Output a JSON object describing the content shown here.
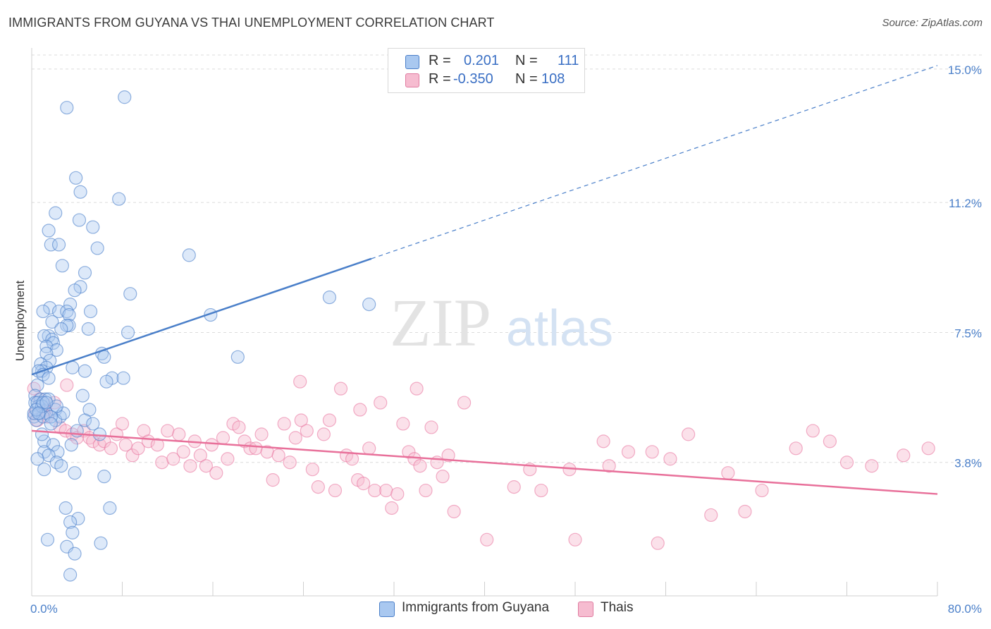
{
  "header": {
    "title": "IMMIGRANTS FROM GUYANA VS THAI UNEMPLOYMENT CORRELATION CHART",
    "source": "Source: ZipAtlas.com"
  },
  "watermark": {
    "zip": "ZIP",
    "atlas": "atlas"
  },
  "legend": {
    "rows": [
      {
        "r_label": "R =",
        "r_value": "0.201",
        "n_label": "N =",
        "n_value": "111",
        "color": "#a9c8f0",
        "border": "#4a7fc9"
      },
      {
        "r_label": "R =",
        "r_value": "-0.350",
        "n_label": "N =",
        "n_value": "108",
        "color": "#f6bcd0",
        "border": "#e07ba0"
      }
    ]
  },
  "bottom_legend": {
    "series1": "Immigrants from Guyana",
    "series2": "Thais"
  },
  "chart_data": {
    "type": "scatter",
    "title": "IMMIGRANTS FROM GUYANA VS THAI UNEMPLOYMENT CORRELATION CHART",
    "xlabel": "",
    "ylabel": "Unemployment",
    "xlim": [
      0,
      80
    ],
    "ylim": [
      0,
      15.4
    ],
    "x_tick_labels": [
      "0.0%",
      "80.0%"
    ],
    "y_ticks": [
      3.8,
      7.5,
      11.2,
      15.0
    ],
    "y_tick_labels": [
      "3.8%",
      "7.5%",
      "11.2%",
      "15.0%"
    ],
    "grid": true,
    "colors": {
      "guyana": "#4a7fc9",
      "guyana_fill": "#a9c8f0",
      "thai": "#e8709a",
      "thai_fill": "#f6bcd0"
    },
    "series": [
      {
        "name": "Immigrants from Guyana",
        "trend": {
          "x": [
            0,
            30
          ],
          "y": [
            6.3,
            9.6
          ],
          "extend_to_x": 80,
          "extend_to_y": 15.1
        },
        "points": [
          [
            3.1,
            13.9
          ],
          [
            8.2,
            14.2
          ],
          [
            3.9,
            11.9
          ],
          [
            4.3,
            11.5
          ],
          [
            7.7,
            11.3
          ],
          [
            2.1,
            10.9
          ],
          [
            4.2,
            10.7
          ],
          [
            5.4,
            10.5
          ],
          [
            1.5,
            10.4
          ],
          [
            1.7,
            10.0
          ],
          [
            2.4,
            10.0
          ],
          [
            5.8,
            9.9
          ],
          [
            13.9,
            9.7
          ],
          [
            2.7,
            9.4
          ],
          [
            4.7,
            9.2
          ],
          [
            4.3,
            8.8
          ],
          [
            3.8,
            8.7
          ],
          [
            8.7,
            8.6
          ],
          [
            26.3,
            8.5
          ],
          [
            29.8,
            8.3
          ],
          [
            1.6,
            8.2
          ],
          [
            3.4,
            8.3
          ],
          [
            1.0,
            8.1
          ],
          [
            2.4,
            8.1
          ],
          [
            3.1,
            8.1
          ],
          [
            3.3,
            8.0
          ],
          [
            5.2,
            8.1
          ],
          [
            15.8,
            8.0
          ],
          [
            1.8,
            7.8
          ],
          [
            3.3,
            7.7
          ],
          [
            3.1,
            7.7
          ],
          [
            2.6,
            7.6
          ],
          [
            5.0,
            7.6
          ],
          [
            8.5,
            7.5
          ],
          [
            1.5,
            7.4
          ],
          [
            1.1,
            7.4
          ],
          [
            1.8,
            7.3
          ],
          [
            1.9,
            7.2
          ],
          [
            1.3,
            7.1
          ],
          [
            2.2,
            7.0
          ],
          [
            1.3,
            6.9
          ],
          [
            6.2,
            6.9
          ],
          [
            6.4,
            6.8
          ],
          [
            18.2,
            6.8
          ],
          [
            1.6,
            6.7
          ],
          [
            0.8,
            6.6
          ],
          [
            1.3,
            6.5
          ],
          [
            3.6,
            6.5
          ],
          [
            0.9,
            6.4
          ],
          [
            4.7,
            6.4
          ],
          [
            0.6,
            6.4
          ],
          [
            1.0,
            6.3
          ],
          [
            7.1,
            6.2
          ],
          [
            1.5,
            6.2
          ],
          [
            8.1,
            6.2
          ],
          [
            6.6,
            6.1
          ],
          [
            0.5,
            6.0
          ],
          [
            0.3,
            5.7
          ],
          [
            4.5,
            5.7
          ],
          [
            0.8,
            5.6
          ],
          [
            0.3,
            5.5
          ],
          [
            1.2,
            5.6
          ],
          [
            0.6,
            5.4
          ],
          [
            2.1,
            5.3
          ],
          [
            5.1,
            5.3
          ],
          [
            0.2,
            5.1
          ],
          [
            0.7,
            5.2
          ],
          [
            2.5,
            5.1
          ],
          [
            1.3,
            5.2
          ],
          [
            0.4,
            5.0
          ],
          [
            2.1,
            5.0
          ],
          [
            1.0,
            5.1
          ],
          [
            4.7,
            5.0
          ],
          [
            1.7,
            5.1
          ],
          [
            0.2,
            5.2
          ],
          [
            5.4,
            4.9
          ],
          [
            4.0,
            4.7
          ],
          [
            6.0,
            4.6
          ],
          [
            3.5,
            4.3
          ],
          [
            1.1,
            4.4
          ],
          [
            1.9,
            4.3
          ],
          [
            1.1,
            4.1
          ],
          [
            2.3,
            4.1
          ],
          [
            1.5,
            4.0
          ],
          [
            0.5,
            3.9
          ],
          [
            2.2,
            3.8
          ],
          [
            2.6,
            3.7
          ],
          [
            3.8,
            3.5
          ],
          [
            6.4,
            3.4
          ],
          [
            1.1,
            3.6
          ],
          [
            3.0,
            2.5
          ],
          [
            4.1,
            2.2
          ],
          [
            6.9,
            2.5
          ],
          [
            3.4,
            2.1
          ],
          [
            3.6,
            1.8
          ],
          [
            1.4,
            1.6
          ],
          [
            3.1,
            1.4
          ],
          [
            3.8,
            1.2
          ],
          [
            6.1,
            1.5
          ],
          [
            3.4,
            0.6
          ],
          [
            0.9,
            4.6
          ],
          [
            1.7,
            4.9
          ],
          [
            2.8,
            5.2
          ],
          [
            0.5,
            5.5
          ],
          [
            1.5,
            5.6
          ],
          [
            0.9,
            5.4
          ],
          [
            0.4,
            5.3
          ],
          [
            2.2,
            5.4
          ],
          [
            1.0,
            5.5
          ],
          [
            0.6,
            5.2
          ],
          [
            1.3,
            5.5
          ]
        ]
      },
      {
        "name": "Thais",
        "trend": {
          "x": [
            0,
            80
          ],
          "y": [
            4.7,
            2.9
          ]
        },
        "points": [
          [
            0.3,
            5.2
          ],
          [
            0.5,
            5.0
          ],
          [
            1.0,
            5.2
          ],
          [
            1.2,
            5.3
          ],
          [
            0.7,
            5.6
          ],
          [
            0.2,
            5.9
          ],
          [
            2.0,
            5.5
          ],
          [
            3.1,
            6.0
          ],
          [
            1.4,
            5.1
          ],
          [
            2.5,
            4.8
          ],
          [
            3.0,
            4.7
          ],
          [
            3.6,
            4.6
          ],
          [
            4.0,
            4.5
          ],
          [
            4.6,
            4.7
          ],
          [
            5.1,
            4.5
          ],
          [
            5.4,
            4.4
          ],
          [
            6.0,
            4.3
          ],
          [
            6.4,
            4.4
          ],
          [
            7.0,
            4.2
          ],
          [
            7.5,
            4.6
          ],
          [
            8.0,
            4.9
          ],
          [
            8.3,
            4.3
          ],
          [
            8.9,
            4.0
          ],
          [
            9.4,
            4.2
          ],
          [
            9.9,
            4.7
          ],
          [
            10.3,
            4.4
          ],
          [
            11.1,
            4.3
          ],
          [
            11.5,
            3.8
          ],
          [
            12.0,
            4.7
          ],
          [
            12.5,
            3.9
          ],
          [
            13.0,
            4.6
          ],
          [
            13.4,
            4.1
          ],
          [
            14.0,
            3.7
          ],
          [
            14.4,
            4.4
          ],
          [
            14.9,
            4.0
          ],
          [
            15.4,
            3.7
          ],
          [
            15.9,
            4.3
          ],
          [
            16.3,
            3.5
          ],
          [
            16.9,
            4.5
          ],
          [
            17.3,
            3.9
          ],
          [
            17.8,
            4.9
          ],
          [
            18.3,
            4.8
          ],
          [
            18.8,
            4.4
          ],
          [
            19.3,
            4.2
          ],
          [
            19.8,
            4.2
          ],
          [
            20.3,
            4.6
          ],
          [
            20.8,
            4.1
          ],
          [
            21.3,
            3.3
          ],
          [
            21.8,
            4.0
          ],
          [
            22.3,
            4.9
          ],
          [
            22.8,
            3.8
          ],
          [
            23.3,
            4.5
          ],
          [
            23.8,
            5.0
          ],
          [
            24.3,
            4.7
          ],
          [
            24.8,
            3.6
          ],
          [
            25.3,
            3.1
          ],
          [
            25.8,
            4.6
          ],
          [
            26.3,
            5.0
          ],
          [
            26.8,
            3.0
          ],
          [
            27.3,
            5.9
          ],
          [
            27.8,
            4.0
          ],
          [
            28.3,
            3.9
          ],
          [
            28.8,
            3.3
          ],
          [
            29.3,
            3.2
          ],
          [
            29.8,
            4.2
          ],
          [
            30.3,
            3.0
          ],
          [
            30.8,
            5.5
          ],
          [
            31.3,
            3.0
          ],
          [
            31.8,
            2.5
          ],
          [
            32.3,
            2.9
          ],
          [
            32.8,
            4.9
          ],
          [
            33.3,
            4.1
          ],
          [
            33.8,
            3.9
          ],
          [
            34.3,
            3.7
          ],
          [
            34.8,
            3.0
          ],
          [
            35.3,
            4.8
          ],
          [
            35.8,
            3.8
          ],
          [
            36.3,
            3.4
          ],
          [
            36.8,
            4.0
          ],
          [
            37.3,
            2.4
          ],
          [
            40.2,
            1.6
          ],
          [
            44.0,
            3.6
          ],
          [
            48.0,
            1.6
          ],
          [
            47.5,
            3.6
          ],
          [
            45.0,
            3.0
          ],
          [
            50.5,
            4.4
          ],
          [
            54.8,
            4.1
          ],
          [
            56.4,
            3.9
          ],
          [
            60.0,
            2.3
          ],
          [
            64.5,
            3.0
          ],
          [
            67.5,
            4.2
          ],
          [
            69.0,
            4.7
          ],
          [
            72.0,
            3.8
          ],
          [
            77.0,
            4.0
          ],
          [
            79.2,
            4.2
          ],
          [
            74.2,
            3.7
          ],
          [
            70.5,
            4.4
          ],
          [
            63.0,
            2.4
          ],
          [
            61.5,
            3.5
          ],
          [
            58.0,
            4.6
          ],
          [
            55.3,
            1.5
          ],
          [
            52.7,
            4.1
          ],
          [
            51.0,
            3.7
          ],
          [
            42.6,
            3.1
          ],
          [
            38.2,
            5.5
          ],
          [
            34.0,
            5.9
          ],
          [
            29.0,
            5.3
          ],
          [
            23.7,
            6.1
          ]
        ]
      }
    ]
  }
}
